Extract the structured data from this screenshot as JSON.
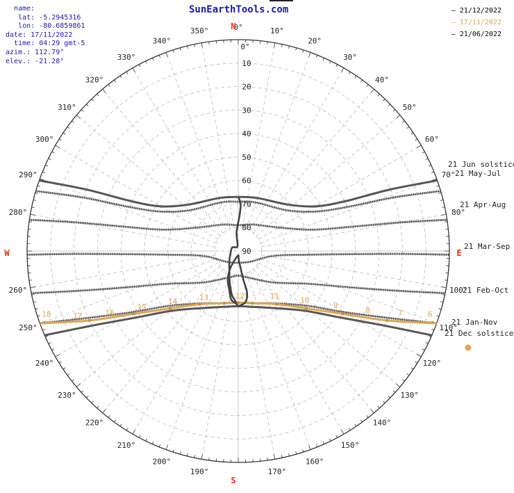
{
  "header": {
    "site_title": "SunEarthTools.com"
  },
  "info": {
    "name": {
      "label": "name:",
      "value": ""
    },
    "lat": {
      "label": "lat:",
      "value": "-5.2945316"
    },
    "lon": {
      "label": "lon:",
      "value": "-80.6859861"
    },
    "date": {
      "label": "date:",
      "value": "17/11/2022"
    },
    "time": {
      "label": "time:",
      "value": "04:29 gmt-5"
    },
    "azim": {
      "label": "azim.:",
      "value": "112.79°"
    },
    "elev": {
      "label": "elev.:",
      "value": "-21.28°"
    }
  },
  "legend": [
    {
      "label": "21/12/2022",
      "color": "#333333"
    },
    {
      "label": "17/11/2022",
      "color": "#e0a552"
    },
    {
      "label": "21/06/2022",
      "color": "#333333"
    }
  ],
  "compass": {
    "north": "N",
    "south": "S",
    "east": "E",
    "west": "W",
    "color": "#e0301e"
  },
  "chart_data": {
    "type": "polar sun path",
    "azimuth_ticks": [
      {
        "az": 0,
        "label": "0°"
      },
      {
        "az": 10,
        "label": "10°"
      },
      {
        "az": 20,
        "label": "20°"
      },
      {
        "az": 30,
        "label": "30°"
      },
      {
        "az": 40,
        "label": "40°"
      },
      {
        "az": 50,
        "label": "50°"
      },
      {
        "az": 60,
        "label": "60°"
      },
      {
        "az": 70,
        "label": "70°"
      },
      {
        "az": 80,
        "label": "80°"
      },
      {
        "az": 100,
        "label": "100°"
      },
      {
        "az": 110,
        "label": "110°"
      },
      {
        "az": 120,
        "label": "120°"
      },
      {
        "az": 130,
        "label": "130°"
      },
      {
        "az": 140,
        "label": "140°"
      },
      {
        "az": 150,
        "label": "150°"
      },
      {
        "az": 160,
        "label": "160°"
      },
      {
        "az": 170,
        "label": "170°"
      },
      {
        "az": 190,
        "label": "190°"
      },
      {
        "az": 200,
        "label": "200°"
      },
      {
        "az": 210,
        "label": "210°"
      },
      {
        "az": 220,
        "label": "220°"
      },
      {
        "az": 230,
        "label": "230°"
      },
      {
        "az": 240,
        "label": "240°"
      },
      {
        "az": 250,
        "label": "250°"
      },
      {
        "az": 260,
        "label": "260°"
      },
      {
        "az": 280,
        "label": "280°"
      },
      {
        "az": 290,
        "label": "290°"
      },
      {
        "az": 300,
        "label": "300°"
      },
      {
        "az": 310,
        "label": "310°"
      },
      {
        "az": 320,
        "label": "320°"
      },
      {
        "az": 330,
        "label": "330°"
      },
      {
        "az": 340,
        "label": "340°"
      },
      {
        "az": 350,
        "label": "350°"
      }
    ],
    "elevation_ticks": [
      {
        "el": 0,
        "label": "0"
      },
      {
        "el": 10,
        "label": "10"
      },
      {
        "el": 20,
        "label": "20"
      },
      {
        "el": 30,
        "label": "30"
      },
      {
        "el": 40,
        "label": "40"
      },
      {
        "el": 50,
        "label": "50"
      },
      {
        "el": 60,
        "label": "60"
      },
      {
        "el": 70,
        "label": "70"
      },
      {
        "el": 80,
        "label": "80"
      },
      {
        "el": 90,
        "label": "90"
      }
    ],
    "curve_labels": [
      {
        "label": "21 Jun  solstice",
        "curve": "jun"
      },
      {
        "label": "21 May-Jul",
        "curve": "may"
      },
      {
        "label": "21 Apr-Aug",
        "curve": "apr"
      },
      {
        "label": "21 Mar-Sep",
        "curve": "mar"
      },
      {
        "label": "21 Feb-Oct",
        "curve": "feb"
      },
      {
        "label": "21 Jan-Nov",
        "curve": "jan"
      },
      {
        "label": "21 Dec  solstice",
        "curve": "dec"
      }
    ],
    "sun_paths": {
      "jun": {
        "style": "solid",
        "points": [
          [
            289.5,
            0
          ],
          [
            292,
            20
          ],
          [
            295,
            40
          ],
          [
            300,
            52
          ],
          [
            313,
            61
          ],
          [
            340,
            66
          ],
          [
            360,
            67
          ],
          [
            20,
            66
          ],
          [
            47,
            61
          ],
          [
            60,
            52
          ],
          [
            65,
            40
          ],
          [
            68,
            20
          ],
          [
            70.5,
            0
          ]
        ]
      },
      "may": {
        "style": "hatched",
        "points": [
          [
            286.5,
            0
          ],
          [
            289,
            20
          ],
          [
            292,
            40
          ],
          [
            297,
            53
          ],
          [
            310,
            63
          ],
          [
            340,
            68
          ],
          [
            360,
            69
          ],
          [
            20,
            68
          ],
          [
            50,
            63
          ],
          [
            63,
            53
          ],
          [
            68,
            40
          ],
          [
            71,
            20
          ],
          [
            73.5,
            0
          ]
        ]
      },
      "apr": {
        "style": "hatched",
        "points": [
          [
            278.5,
            0
          ],
          [
            280,
            20
          ],
          [
            282,
            40
          ],
          [
            286,
            57
          ],
          [
            300,
            70
          ],
          [
            330,
            77
          ],
          [
            360,
            79
          ],
          [
            30,
            77
          ],
          [
            60,
            70
          ],
          [
            74,
            57
          ],
          [
            78,
            40
          ],
          [
            80,
            20
          ],
          [
            81.5,
            0
          ]
        ]
      },
      "mar": {
        "style": "hatched",
        "points": [
          [
            269,
            0
          ],
          [
            269,
            20
          ],
          [
            268.5,
            40
          ],
          [
            267,
            60
          ],
          [
            262,
            75
          ],
          [
            230,
            83
          ],
          [
            180,
            85
          ],
          [
            130,
            83
          ],
          [
            98,
            75
          ],
          [
            93,
            60
          ],
          [
            91.5,
            40
          ],
          [
            91,
            20
          ],
          [
            91,
            0
          ]
        ]
      },
      "feb": {
        "style": "hatched",
        "points": [
          [
            258.5,
            0
          ],
          [
            256,
            20
          ],
          [
            252,
            40
          ],
          [
            245,
            57
          ],
          [
            228,
            70
          ],
          [
            200,
            78
          ],
          [
            180,
            79.5
          ],
          [
            160,
            78
          ],
          [
            132,
            70
          ],
          [
            115,
            57
          ],
          [
            108,
            40
          ],
          [
            104,
            20
          ],
          [
            101.5,
            0
          ]
        ]
      },
      "jan": {
        "style": "hatched",
        "points": [
          [
            250,
            0
          ],
          [
            246,
            20
          ],
          [
            240,
            38
          ],
          [
            232,
            52
          ],
          [
            217,
            62
          ],
          [
            195,
            67
          ],
          [
            180,
            68
          ],
          [
            165,
            67
          ],
          [
            143,
            62
          ],
          [
            128,
            52
          ],
          [
            120,
            38
          ],
          [
            114,
            20
          ],
          [
            110,
            0
          ]
        ]
      },
      "dec": {
        "style": "solid",
        "points": [
          [
            246.5,
            0
          ],
          [
            243,
            20
          ],
          [
            237,
            38
          ],
          [
            228,
            52
          ],
          [
            213,
            61
          ],
          [
            194,
            65.5
          ],
          [
            180,
            66.5
          ],
          [
            166,
            65.5
          ],
          [
            147,
            61
          ],
          [
            132,
            52
          ],
          [
            123,
            38
          ],
          [
            117,
            20
          ],
          [
            113.5,
            0
          ]
        ]
      },
      "current": {
        "style": "orange",
        "color": "#e0a552",
        "points": [
          [
            250,
            0
          ],
          [
            245,
            20
          ],
          [
            239,
            38
          ],
          [
            230,
            52
          ],
          [
            216,
            62
          ],
          [
            195,
            67
          ],
          [
            180,
            68
          ],
          [
            165,
            67
          ],
          [
            144,
            62
          ],
          [
            130,
            52
          ],
          [
            121,
            38
          ],
          [
            115,
            20
          ],
          [
            110,
            0
          ]
        ]
      }
    },
    "hour_labels": [
      {
        "label": "6",
        "az": 110,
        "el": 3
      },
      {
        "label": "7",
        "az": 113,
        "el": 15
      },
      {
        "label": "8",
        "az": 117,
        "el": 28
      },
      {
        "label": "9",
        "az": 122,
        "el": 41
      },
      {
        "label": "10",
        "az": 130,
        "el": 53
      },
      {
        "label": "11",
        "az": 145,
        "el": 63
      },
      {
        "label": "12",
        "az": 178,
        "el": 68
      },
      {
        "label": "13",
        "az": 213,
        "el": 63
      },
      {
        "label": "14",
        "az": 229,
        "el": 53
      },
      {
        "label": "15",
        "az": 237,
        "el": 41
      },
      {
        "label": "16",
        "az": 242,
        "el": 28
      },
      {
        "label": "17",
        "az": 246,
        "el": 15
      },
      {
        "label": "18",
        "az": 250,
        "el": 3
      }
    ],
    "analemma": {
      "points": [
        [
          180,
          66.5
        ],
        [
          172,
          68
        ],
        [
          168,
          72
        ],
        [
          170,
          78
        ],
        [
          176,
          86
        ],
        [
          185,
          88
        ],
        [
          205,
          82
        ],
        [
          200,
          77
        ],
        [
          193,
          73
        ],
        [
          188,
          69
        ],
        [
          182,
          67.5
        ],
        [
          180,
          66.5
        ]
      ],
      "second_loop": [
        [
          0,
          67
        ],
        [
          3,
          70
        ],
        [
          2,
          75
        ],
        [
          355,
          82
        ],
        [
          350,
          88
        ],
        [
          300,
          87
        ],
        [
          240,
          86
        ],
        [
          220,
          84
        ],
        [
          205,
          81
        ],
        [
          195,
          76
        ],
        [
          188,
          71
        ],
        [
          182,
          68
        ]
      ]
    },
    "sun_marker": {
      "az": 112.79,
      "el": -21.28,
      "color": "#e0a552"
    }
  }
}
